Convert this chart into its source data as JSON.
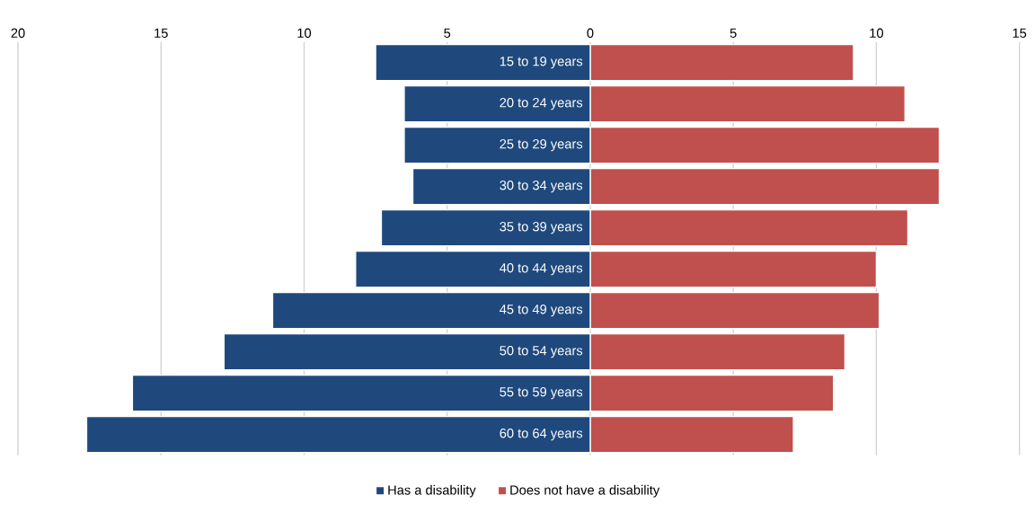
{
  "chart_data": {
    "type": "bar",
    "orientation": "horizontal",
    "categories": [
      "15 to 19 years",
      "20 to 24 years",
      "25 to 29 years",
      "30 to 34 years",
      "35 to 39 years",
      "40 to 44 years",
      "45 to 49 years",
      "50 to 54 years",
      "55 to 59 years",
      "60 to 64 years"
    ],
    "series": [
      {
        "name": "Has a disability",
        "color": "#1f497d",
        "values": [
          -7.5,
          -6.5,
          -6.5,
          -6.2,
          -7.3,
          -8.2,
          -11.1,
          -12.8,
          -16.0,
          -17.6
        ]
      },
      {
        "name": "Does not have a disability",
        "color": "#c0504d",
        "values": [
          9.2,
          11.0,
          12.2,
          12.2,
          11.1,
          10.0,
          10.1,
          8.9,
          8.5,
          7.1
        ]
      }
    ],
    "xlim": [
      -20,
      15
    ],
    "xticks": [
      {
        "value": -20,
        "label": "20"
      },
      {
        "value": -15,
        "label": "15"
      },
      {
        "value": -10,
        "label": "10"
      },
      {
        "value": -5,
        "label": "5"
      },
      0,
      5,
      10,
      15
    ],
    "grid": "x",
    "legend": "bottom",
    "stacked": true
  }
}
